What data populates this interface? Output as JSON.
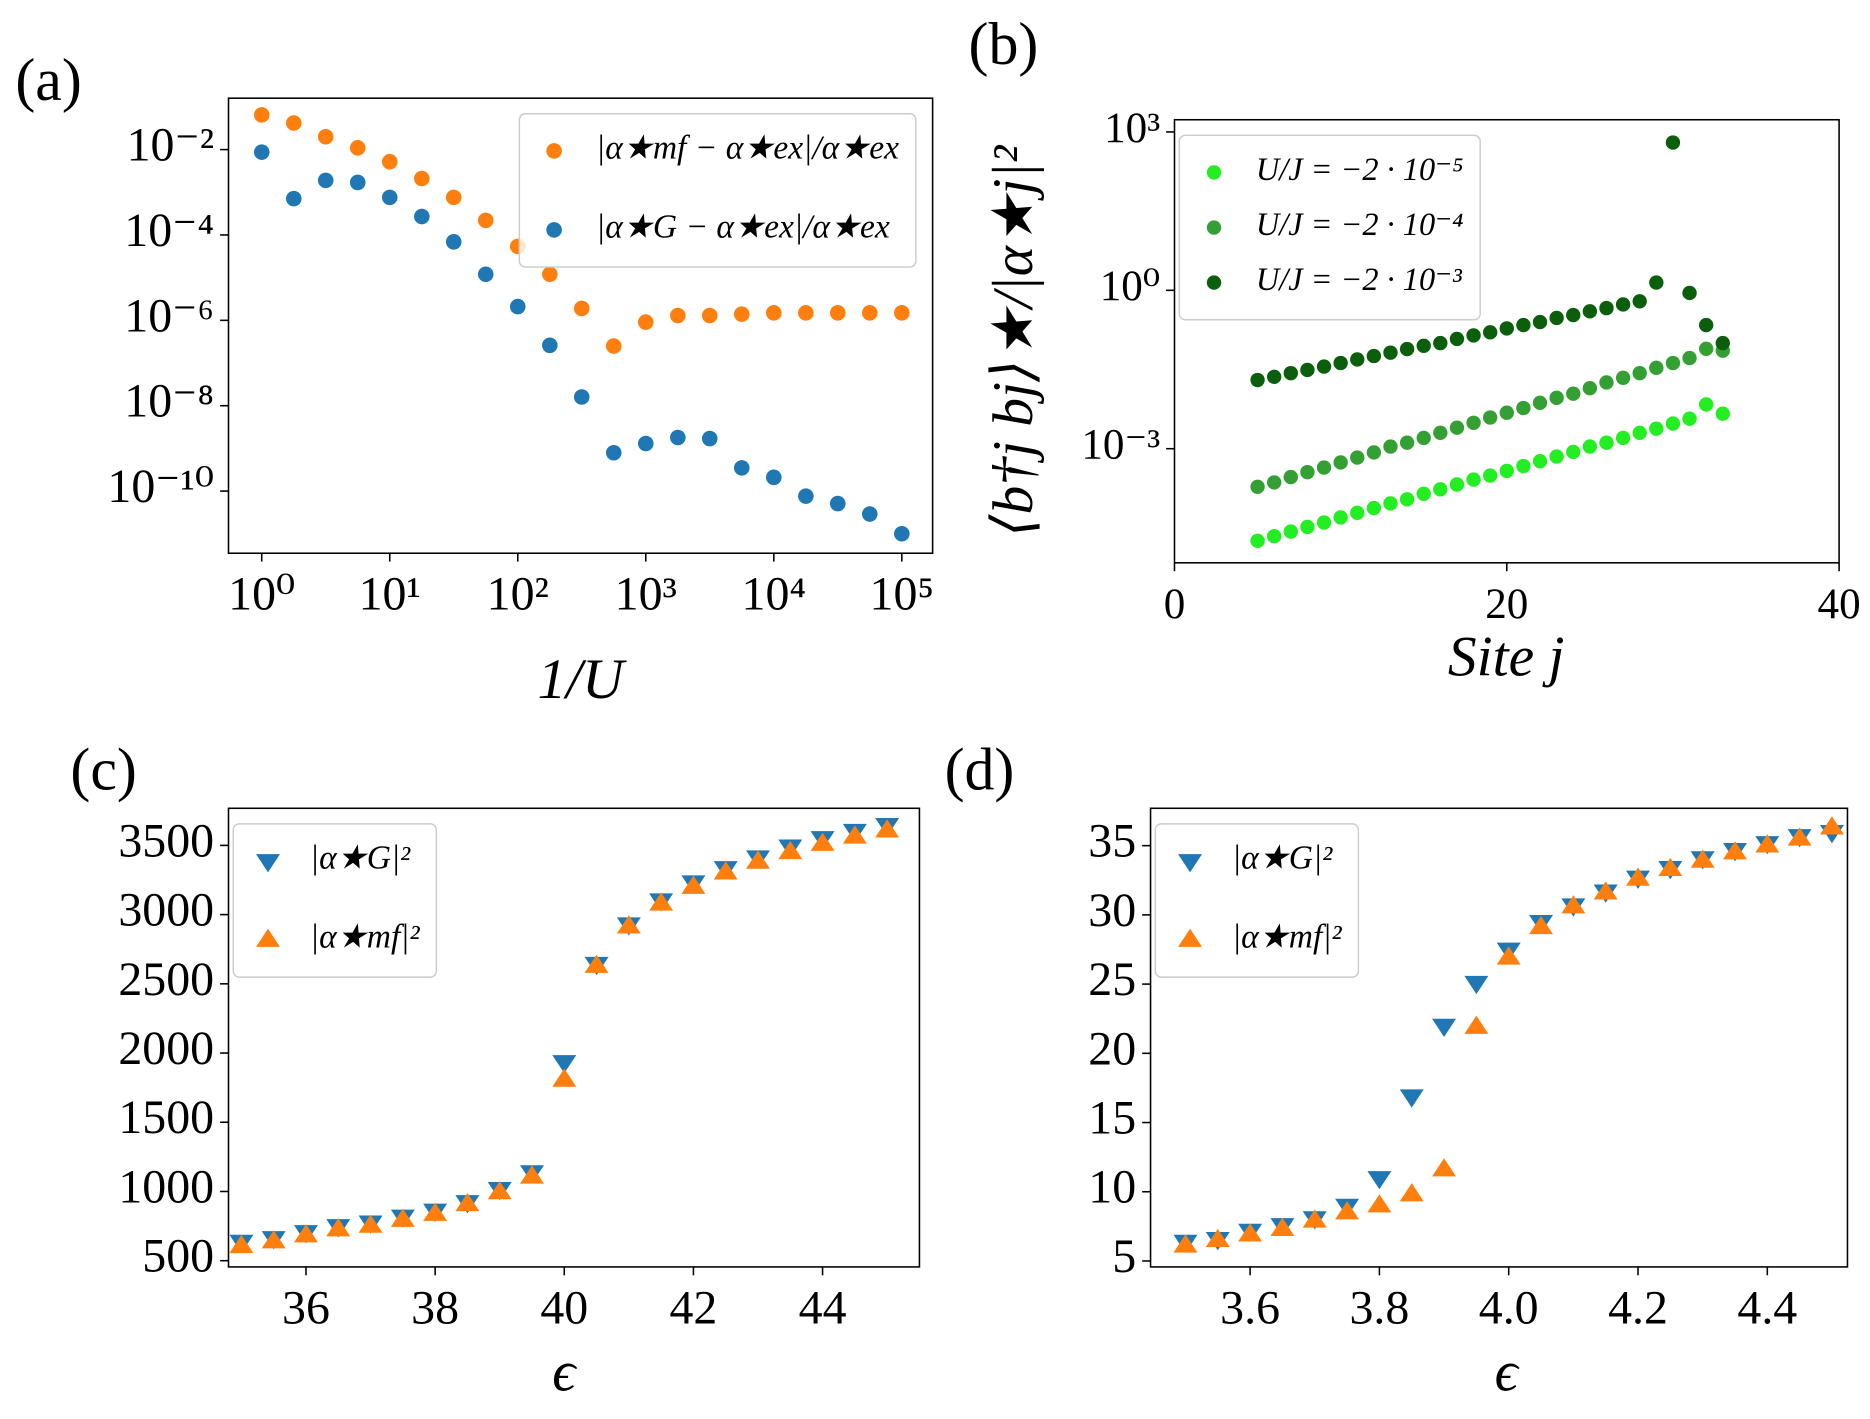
{
  "chart_data": [
    {
      "type": "scatter",
      "panel_label": "(a)",
      "xlabel": "1/U",
      "xscale": "log",
      "yscale": "log",
      "xlim": [
        0.55,
        174000
      ],
      "ylim": [
        3.5e-12,
        0.16
      ],
      "xticks": [
        {
          "value": 1,
          "label": "10⁰"
        },
        {
          "value": 10,
          "label": "10¹"
        },
        {
          "value": 100,
          "label": "10²"
        },
        {
          "value": 1000,
          "label": "10³"
        },
        {
          "value": 10000,
          "label": "10⁴"
        },
        {
          "value": 100000,
          "label": "10⁵"
        }
      ],
      "yticks": [
        {
          "value": 0.01,
          "label": "10⁻²"
        },
        {
          "value": 0.0001,
          "label": "10⁻⁴"
        },
        {
          "value": 1e-06,
          "label": "10⁻⁶"
        },
        {
          "value": 1e-08,
          "label": "10⁻⁸"
        },
        {
          "value": 1e-10,
          "label": "10⁻¹⁰"
        }
      ],
      "legend": "upper right",
      "x": [
        1,
        1.78,
        3.16,
        5.62,
        10,
        17.8,
        31.6,
        56.2,
        100,
        178,
        316,
        562,
        1000,
        1780,
        3160,
        5620,
        10000,
        17800,
        31600,
        56200,
        100000
      ],
      "series": [
        {
          "name": "|α★mf − α★ex|/α★ex",
          "color": "#ff7f0e",
          "marker": "o",
          "values": [
            0.065,
            0.042,
            0.02,
            0.011,
            0.0052,
            0.0021,
            0.00076,
            0.00022,
            5.4e-05,
            1.2e-05,
            1.9e-06,
            2.5e-07,
            9.1e-07,
            1.3e-06,
            1.3e-06,
            1.4e-06,
            1.5e-06,
            1.5e-06,
            1.5e-06,
            1.5e-06,
            1.5e-06
          ]
        },
        {
          "name": "|α★G − α★ex|/α★ex",
          "color": "#1f77b4",
          "marker": "o",
          "values": [
            0.0087,
            0.00071,
            0.0019,
            0.0017,
            0.00076,
            0.00027,
            6.9e-05,
            1.2e-05,
            2.1e-06,
            2.6e-07,
            1.6e-08,
            7.9e-10,
            1.3e-09,
            1.8e-09,
            1.7e-09,
            3.5e-10,
            2.1e-10,
            7.6e-11,
            5.1e-11,
            2.9e-11,
            1e-11
          ]
        }
      ]
    },
    {
      "type": "scatter",
      "panel_label": "(b)",
      "xlabel": "Site j",
      "ylabel": "⟨b†j bj⟩★/|α★j|²",
      "yscale": "log",
      "xlim": [
        0,
        40
      ],
      "ylim": [
        6.9e-06,
        1700
      ],
      "xticks": [
        0,
        20,
        40
      ],
      "yticks": [
        {
          "value": 0.001,
          "label": "10⁻³"
        },
        {
          "value": 1,
          "label": "10⁰"
        },
        {
          "value": 1000,
          "label": "10³"
        }
      ],
      "legend": "upper left",
      "x": [
        5,
        6,
        7,
        8,
        9,
        10,
        11,
        12,
        13,
        14,
        15,
        16,
        17,
        18,
        19,
        20,
        21,
        22,
        23,
        24,
        25,
        26,
        27,
        28,
        29,
        30,
        31,
        32,
        33
      ],
      "series": [
        {
          "name": "U/J = −2 · 10⁻⁵",
          "color": "#22ee22",
          "marker": "o",
          "values": [
            1.8e-05,
            2.2e-05,
            2.7e-05,
            3.3e-05,
            4e-05,
            5e-05,
            6.1e-05,
            7.5e-05,
            9.2e-05,
            0.00011,
            0.00014,
            0.00017,
            0.00021,
            0.00026,
            0.00031,
            0.00038,
            0.00047,
            0.00058,
            0.00071,
            0.00087,
            0.0011,
            0.0013,
            0.0016,
            0.002,
            0.0024,
            0.003,
            0.0037,
            0.0069,
            0.0046
          ]
        },
        {
          "name": "U/J = −2 · 10⁻⁴",
          "color": "#34a034",
          "marker": "o",
          "values": [
            0.00019,
            0.00023,
            0.00029,
            0.00036,
            0.00044,
            0.00055,
            0.00068,
            0.00085,
            0.0011,
            0.0013,
            0.0016,
            0.002,
            0.0025,
            0.0031,
            0.0039,
            0.0048,
            0.0059,
            0.0074,
            0.0092,
            0.011,
            0.014,
            0.018,
            0.022,
            0.027,
            0.034,
            0.042,
            0.052,
            0.078,
            0.072
          ]
        },
        {
          "name": "U/J = −2 · 10⁻³",
          "color": "#0b5e0b",
          "marker": "o",
          "values": [
            0.02,
            0.023,
            0.027,
            0.031,
            0.036,
            0.042,
            0.049,
            0.057,
            0.066,
            0.077,
            0.089,
            0.1,
            0.12,
            0.14,
            0.16,
            0.19,
            0.22,
            0.25,
            0.3,
            0.34,
            0.4,
            0.46,
            0.54,
            0.62,
            1.4,
            630,
            0.89,
            0.22,
            0.1
          ]
        }
      ]
    },
    {
      "type": "scatter",
      "panel_label": "(c)",
      "xlabel": "ϵ",
      "xlim": [
        34.8,
        45.5
      ],
      "ylim": [
        455,
        3768
      ],
      "xticks": [
        36,
        38,
        40,
        42,
        44
      ],
      "yticks": [
        500,
        1000,
        1500,
        2000,
        2500,
        3000,
        3500
      ],
      "legend": "upper left",
      "x": [
        35,
        35.5,
        36,
        36.5,
        37,
        37.5,
        38,
        38.5,
        39,
        39.5,
        40,
        40.5,
        41,
        41.5,
        42,
        42.5,
        43,
        43.5,
        44,
        44.5,
        45
      ],
      "series": [
        {
          "name": "|α★G|²",
          "color": "#1f77b4",
          "marker": "v",
          "values": [
            638,
            664,
            708,
            751,
            777,
            820,
            863,
            924,
            1019,
            1140,
            1936,
            2645,
            2931,
            3104,
            3234,
            3337,
            3415,
            3493,
            3554,
            3606,
            3649
          ]
        },
        {
          "name": "|α★mf|²",
          "color": "#ff7f0e",
          "marker": "^",
          "values": [
            604,
            638,
            682,
            725,
            751,
            794,
            837,
            907,
            993,
            1106,
            1806,
            2628,
            2913,
            3078,
            3199,
            3303,
            3381,
            3450,
            3510,
            3562,
            3606
          ]
        }
      ]
    },
    {
      "type": "scatter",
      "panel_label": "(d)",
      "xlabel": "ϵ",
      "xlim": [
        3.446,
        4.524
      ],
      "ylim": [
        4.57,
        37.7
      ],
      "xticks": [
        3.6,
        3.8,
        {
          "value": 4,
          "label": "4.0"
        },
        4.2,
        4.4
      ],
      "yticks": [
        5,
        10,
        15,
        20,
        25,
        30,
        35
      ],
      "legend": "upper left",
      "x": [
        3.5,
        3.55,
        3.6,
        3.65,
        3.7,
        3.75,
        3.8,
        3.85,
        3.9,
        3.95,
        4.0,
        4.05,
        4.1,
        4.15,
        4.2,
        4.25,
        4.3,
        4.35,
        4.4,
        4.45,
        4.5
      ],
      "series": [
        {
          "name": "|α★G|²",
          "color": "#1f77b4",
          "marker": "v",
          "values": [
            6.4,
            6.6,
            7.2,
            7.6,
            8.1,
            9.0,
            11.0,
            16.9,
            22.0,
            25.1,
            27.5,
            29.5,
            30.7,
            31.7,
            32.7,
            33.4,
            34.1,
            34.7,
            35.2,
            35.7,
            36.0
          ]
        },
        {
          "name": "|α★mf|²",
          "color": "#ff7f0e",
          "marker": "^",
          "values": [
            6.1,
            6.5,
            6.9,
            7.3,
            7.9,
            8.5,
            9.0,
            9.8,
            11.6,
            21.9,
            26.9,
            29.1,
            30.6,
            31.6,
            32.6,
            33.3,
            33.9,
            34.5,
            35.0,
            35.5,
            36.3
          ]
        }
      ]
    }
  ]
}
